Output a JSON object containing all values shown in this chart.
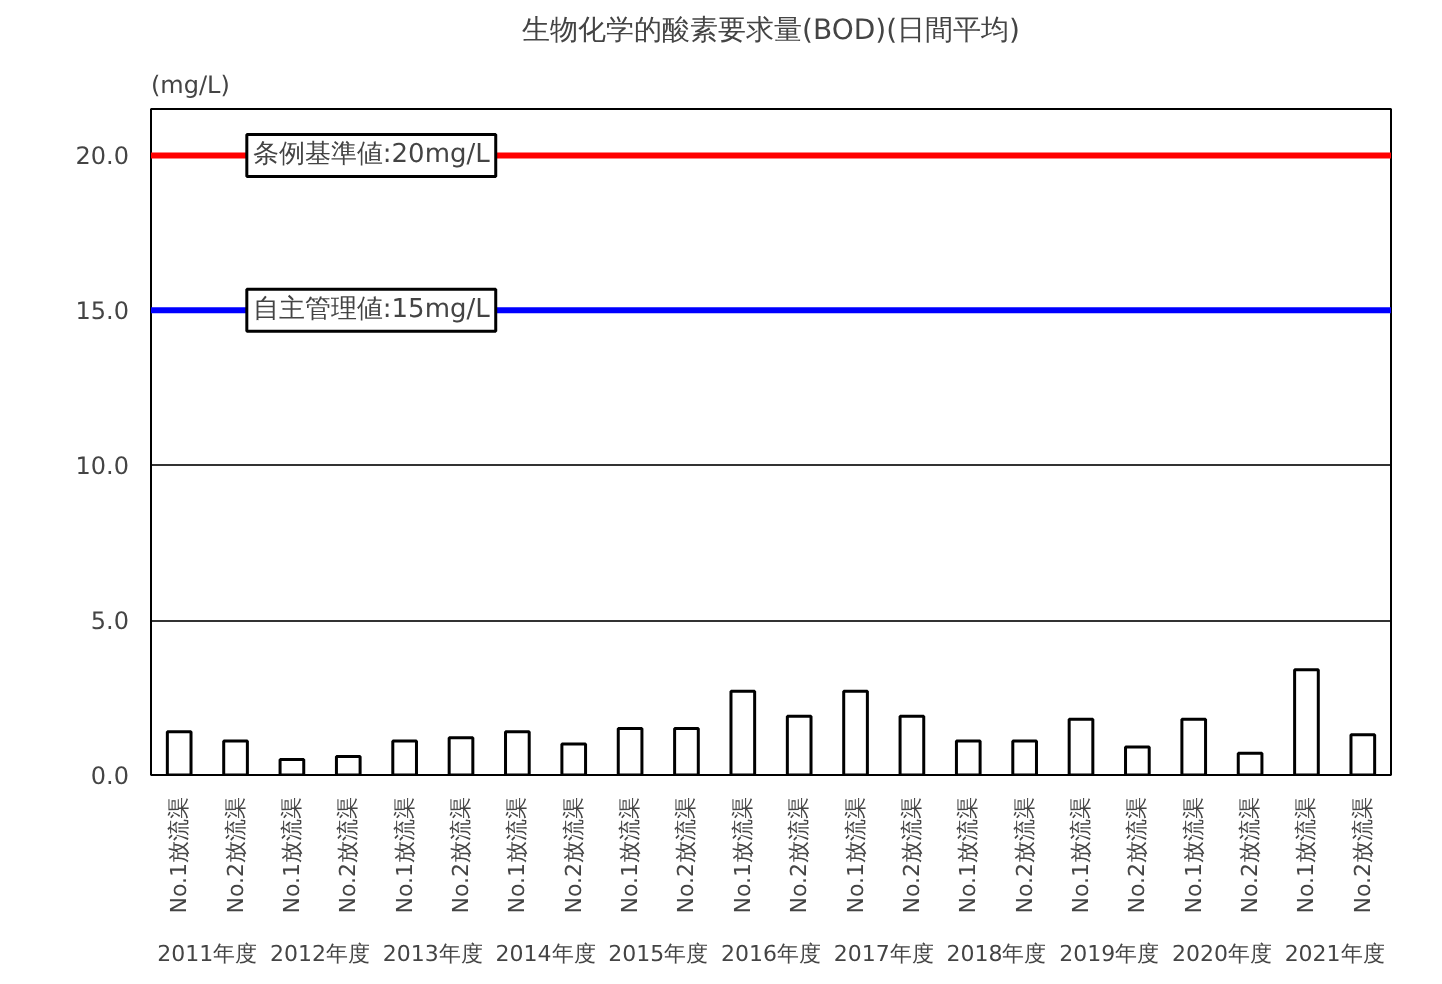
{
  "chart_data": {
    "type": "bar",
    "title": "生物化学的酸素要求量(BOD)(日間平均)",
    "ylabel": "(mg/L)",
    "categories": [
      "No.1放流渠",
      "No.2放流渠",
      "No.1放流渠",
      "No.2放流渠",
      "No.1放流渠",
      "No.2放流渠",
      "No.1放流渠",
      "No.2放流渠",
      "No.1放流渠",
      "No.2放流渠",
      "No.1放流渠",
      "No.2放流渠",
      "No.1放流渠",
      "No.2放流渠",
      "No.1放流渠",
      "No.2放流渠",
      "No.1放流渠",
      "No.2放流渠",
      "No.1放流渠",
      "No.2放流渠",
      "No.1放流渠",
      "No.2放流渠"
    ],
    "values": [
      1.4,
      1.1,
      0.5,
      0.6,
      1.1,
      1.2,
      1.4,
      1.0,
      1.5,
      1.5,
      2.7,
      1.9,
      2.7,
      1.9,
      1.1,
      1.1,
      1.8,
      0.9,
      1.8,
      0.7,
      3.4,
      1.3
    ],
    "color": "#ffffff",
    "annotations": [
      "2011年度",
      "2012年度",
      "2013年度",
      "2014年度",
      "2015年度",
      "2016年度",
      "2017年度",
      "2018年度",
      "2019年度",
      "2020年度",
      "2021年度"
    ],
    "ylim": [
      0,
      21.5
    ],
    "yticks": [
      {
        "value": 0,
        "label": "0.0"
      },
      {
        "value": 5,
        "label": "5.0"
      },
      {
        "value": 10,
        "label": "10.0"
      },
      {
        "value": 15,
        "label": "15.0"
      },
      {
        "value": 20,
        "label": "20.0"
      }
    ],
    "grid": "y",
    "ref_lines": [
      {
        "axis": "y",
        "value": 20,
        "label": "条例基準値:20mg/L",
        "color": "#ff0000"
      },
      {
        "axis": "y",
        "value": 15,
        "label": "自主管理値:15mg/L",
        "color": "#0000ff"
      }
    ]
  }
}
